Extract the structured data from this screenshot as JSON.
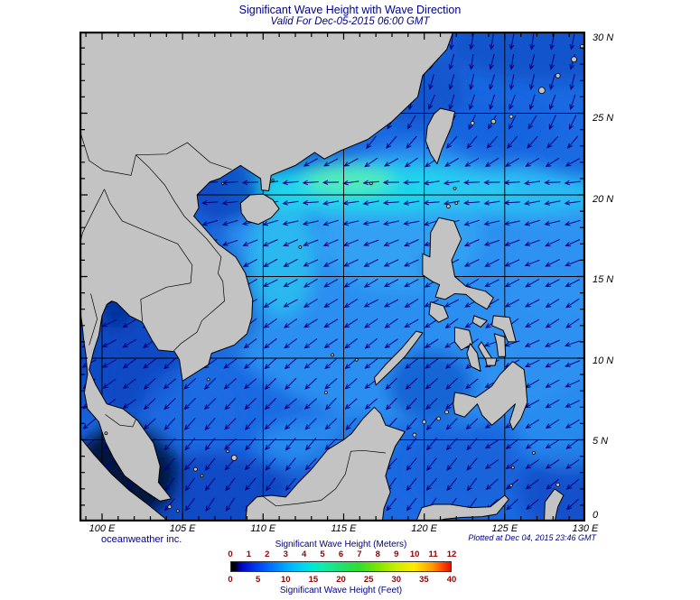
{
  "title": "Significant Wave Height with Wave Direction",
  "subtitle": "Valid For Dec-05-2015 06:00 GMT",
  "credit": "oceanweather inc.",
  "plotted_at": "Plotted at Dec 04, 2015 23:46 GMT",
  "map": {
    "lat_ticks": [
      {
        "label": "30 N",
        "value": 30
      },
      {
        "label": "25 N",
        "value": 25
      },
      {
        "label": "20 N",
        "value": 20
      },
      {
        "label": "15 N",
        "value": 15
      },
      {
        "label": "10 N",
        "value": 10
      },
      {
        "label": "5 N",
        "value": 5
      },
      {
        "label": "0",
        "value": 0
      }
    ],
    "lon_ticks": [
      {
        "label": "100 E",
        "value": 100
      },
      {
        "label": "105 E",
        "value": 105
      },
      {
        "label": "110 E",
        "value": 110
      },
      {
        "label": "115 E",
        "value": 115
      },
      {
        "label": "120 E",
        "value": 120
      },
      {
        "label": "125 E",
        "value": 125
      },
      {
        "label": "130 E",
        "value": 130
      }
    ],
    "lon_min": 98.6,
    "lon_max": 130,
    "lat_min": 0,
    "lat_max": 30,
    "grid_step_deg": 5,
    "minor_tick_deg": 1,
    "land_color": "#c3c3c3",
    "coast_color": "#000000",
    "ocean_base_color": "#1b6ae2",
    "arrow_color": "#000080",
    "grid_color": "#000000"
  },
  "legend": {
    "meters_label": "Significant Wave Height (Meters)",
    "feet_label": "Significant Wave Height (Feet)",
    "meters_ticks": [
      "0",
      "1",
      "2",
      "3",
      "4",
      "5",
      "6",
      "7",
      "8",
      "9",
      "10",
      "11",
      "12"
    ],
    "feet_ticks": [
      "0",
      "5",
      "10",
      "15",
      "20",
      "25",
      "30",
      "35",
      "40"
    ],
    "tick_color": "#990000",
    "label_color": "#00008b",
    "colorbar_stops": [
      [
        0.0,
        "#000000"
      ],
      [
        0.015,
        "#000000"
      ],
      [
        0.04,
        "#0000b0"
      ],
      [
        0.083,
        "#0022e0"
      ],
      [
        0.167,
        "#0066ff"
      ],
      [
        0.25,
        "#00a8ff"
      ],
      [
        0.333,
        "#00d8f0"
      ],
      [
        0.375,
        "#00e8d0"
      ],
      [
        0.417,
        "#10eca8"
      ],
      [
        0.5,
        "#20e070"
      ],
      [
        0.583,
        "#30dd30"
      ],
      [
        0.667,
        "#80e400"
      ],
      [
        0.75,
        "#c8ee00"
      ],
      [
        0.833,
        "#ffec00"
      ],
      [
        0.917,
        "#ff9800"
      ],
      [
        0.958,
        "#ff5000"
      ],
      [
        1.0,
        "#e81000"
      ]
    ]
  },
  "colors": {
    "heading_text": "#00008b",
    "axis_text": "#000000",
    "background": "#ffffff"
  }
}
